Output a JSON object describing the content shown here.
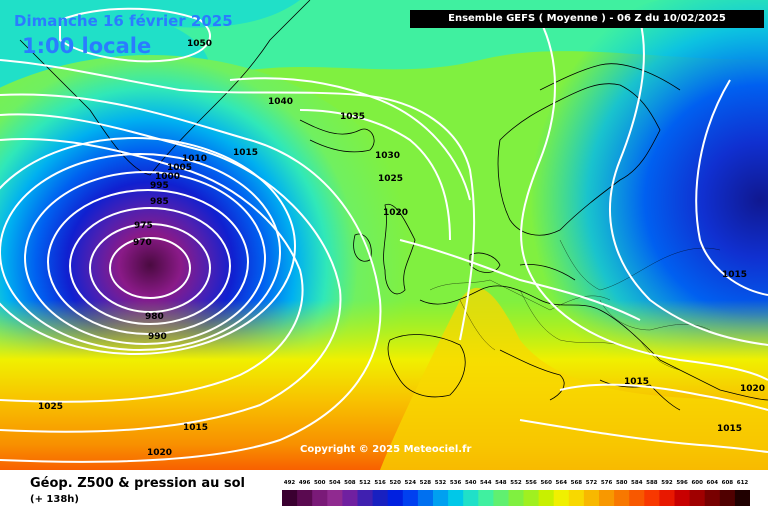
{
  "header": {
    "date": "Dimanche 16 février 2025",
    "local_time": "1:00 locale",
    "run_info": "Ensemble GEFS  ( Moyenne )  - 06 Z du 10/02/2025"
  },
  "copyright": "Copyright © 2025 Meteociel.fr",
  "legend": {
    "title": "Géop. Z500 & pression au sol",
    "subtitle": "(+ 138h)",
    "ticks": [
      "492",
      "496",
      "500",
      "504",
      "508",
      "512",
      "516",
      "520",
      "524",
      "528",
      "532",
      "536",
      "540",
      "544",
      "548",
      "552",
      "556",
      "560",
      "564",
      "568",
      "572",
      "576",
      "580",
      "584",
      "588",
      "592",
      "596",
      "600",
      "604",
      "608",
      "612"
    ],
    "colors": [
      "#3a0030",
      "#5a0a50",
      "#7a1a78",
      "#902a90",
      "#7020a0",
      "#4020b0",
      "#1820c0",
      "#0020e0",
      "#0040f0",
      "#0070f0",
      "#00a0f0",
      "#00c8e8",
      "#20e0c8",
      "#40f0a0",
      "#60f070",
      "#80f040",
      "#a0f020",
      "#c8f000",
      "#f0f000",
      "#f8d800",
      "#f8b800",
      "#f89800",
      "#f87800",
      "#f85800",
      "#f83800",
      "#e81800",
      "#c80000",
      "#a00000",
      "#780000",
      "#500000",
      "#200000"
    ]
  },
  "isobar_labels": [
    {
      "text": "1050"
    },
    {
      "text": "1040"
    },
    {
      "text": "1035"
    },
    {
      "text": "1030"
    },
    {
      "text": "1025"
    },
    {
      "text": "1020"
    },
    {
      "text": "1015"
    },
    {
      "text": "1010"
    },
    {
      "text": "1005"
    },
    {
      "text": "1000"
    },
    {
      "text": "995"
    },
    {
      "text": "985"
    },
    {
      "text": "975"
    },
    {
      "text": "970"
    },
    {
      "text": "980"
    },
    {
      "text": "990"
    },
    {
      "text": "1025"
    },
    {
      "text": "1015"
    },
    {
      "text": "1020"
    },
    {
      "text": "1015"
    },
    {
      "text": "1015"
    },
    {
      "text": "1020"
    },
    {
      "text": "1015"
    }
  ]
}
